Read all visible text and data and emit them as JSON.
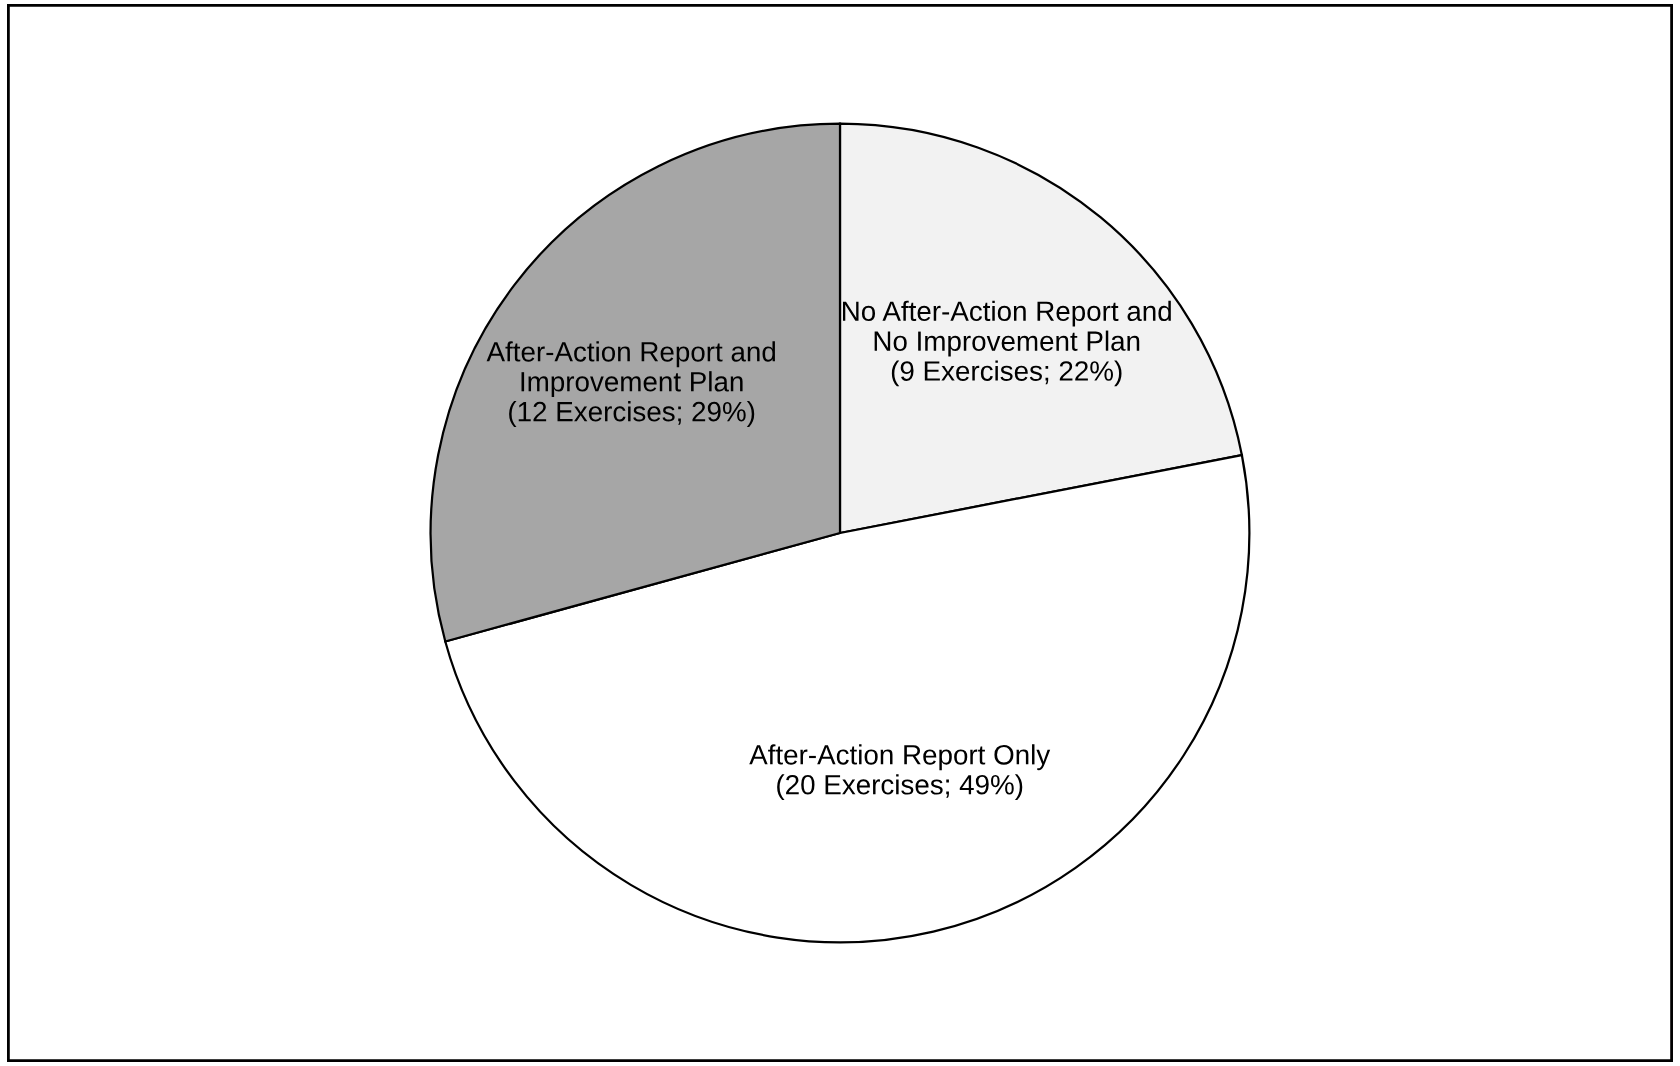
{
  "chart_data": {
    "type": "pie",
    "categories": [
      "No After-Action Report and\nNo Improvement Plan",
      "After-Action Report Only",
      "After-Action Report and\nImprovement Plan"
    ],
    "values": [
      9,
      20,
      12
    ],
    "value_labels": [
      "(9 Exercises; 22%)",
      "(20 Exercises; 49%)",
      "(12 Exercises; 29%)"
    ],
    "colors": [
      "#f2f2f2",
      "#ffffff",
      "#a6a6a6"
    ]
  }
}
